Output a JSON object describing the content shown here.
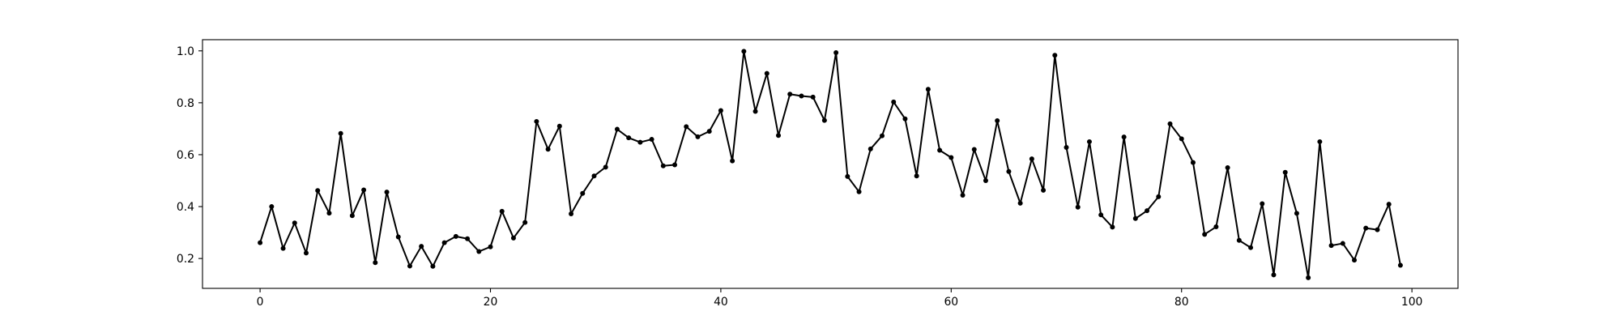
{
  "chart_data": {
    "type": "line",
    "title": "",
    "xlabel": "",
    "ylabel": "",
    "xlim": [
      -5,
      104
    ],
    "ylim": [
      0.085,
      1.043
    ],
    "xticks": [
      0,
      20,
      40,
      60,
      80,
      100
    ],
    "yticks": [
      0.2,
      0.4,
      0.6,
      0.8,
      1.0
    ],
    "xtick_labels": [
      "0",
      "20",
      "40",
      "60",
      "80",
      "100"
    ],
    "ytick_labels": [
      "0.2",
      "0.4",
      "0.6",
      "0.8",
      "1.0"
    ],
    "grid": false,
    "legend": false,
    "line_color": "#000000",
    "marker": "dot",
    "series": [
      {
        "x": [
          0,
          1,
          2,
          3,
          4,
          5,
          6,
          7,
          8,
          9,
          10,
          11,
          12,
          13,
          14,
          15,
          16,
          17,
          18,
          19,
          20,
          21,
          22,
          23,
          24,
          25,
          26,
          27,
          28,
          29,
          30,
          31,
          32,
          33,
          34,
          35,
          36,
          37,
          38,
          39,
          40,
          41,
          42,
          43,
          44,
          45,
          46,
          47,
          48,
          49,
          50,
          51,
          52,
          53,
          54,
          55,
          56,
          57,
          58,
          59,
          60,
          61,
          62,
          63,
          64,
          65,
          66,
          67,
          68,
          69,
          70,
          71,
          72,
          73,
          74,
          75,
          76,
          77,
          78,
          79,
          80,
          81,
          82,
          83,
          84,
          85,
          86,
          87,
          88,
          89,
          90,
          91,
          92,
          93,
          94,
          95,
          96,
          97,
          98,
          99
        ],
        "values": [
          0.261,
          0.4,
          0.239,
          0.337,
          0.221,
          0.462,
          0.375,
          0.682,
          0.365,
          0.464,
          0.184,
          0.456,
          0.283,
          0.171,
          0.247,
          0.17,
          0.261,
          0.285,
          0.276,
          0.227,
          0.245,
          0.382,
          0.279,
          0.339,
          0.728,
          0.621,
          0.71,
          0.372,
          0.451,
          0.518,
          0.552,
          0.698,
          0.665,
          0.648,
          0.659,
          0.557,
          0.561,
          0.708,
          0.669,
          0.69,
          0.77,
          0.576,
          0.998,
          0.767,
          0.913,
          0.674,
          0.833,
          0.826,
          0.822,
          0.732,
          0.993,
          0.516,
          0.457,
          0.622,
          0.673,
          0.803,
          0.738,
          0.518,
          0.852,
          0.617,
          0.589,
          0.444,
          0.62,
          0.5,
          0.731,
          0.535,
          0.413,
          0.584,
          0.463,
          0.983,
          0.628,
          0.398,
          0.65,
          0.368,
          0.321,
          0.668,
          0.354,
          0.384,
          0.438,
          0.719,
          0.661,
          0.57,
          0.293,
          0.322,
          0.55,
          0.27,
          0.242,
          0.411,
          0.137,
          0.532,
          0.374,
          0.126,
          0.65,
          0.25,
          0.258,
          0.194,
          0.317,
          0.311,
          0.409,
          0.174
        ]
      }
    ]
  }
}
